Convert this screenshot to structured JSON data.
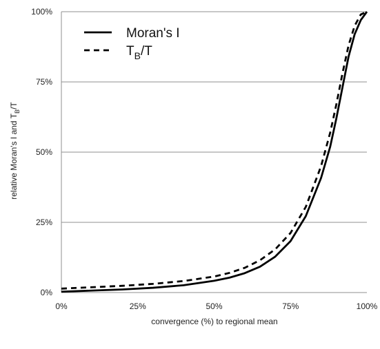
{
  "chart_data": {
    "type": "line",
    "title": "",
    "xlabel": "convergence (%) to regional mean",
    "ylabel_parts": {
      "prefix": "relative Moran's I and T",
      "subscript": "B",
      "suffix": "/T"
    },
    "xlim": [
      0,
      100
    ],
    "ylim": [
      0,
      100
    ],
    "x_ticks": [
      0,
      25,
      50,
      75,
      100
    ],
    "y_ticks": [
      0,
      25,
      50,
      75,
      100
    ],
    "x_tick_labels": [
      "0%",
      "25%",
      "50%",
      "75%",
      "100%"
    ],
    "y_tick_labels": [
      "0%",
      "25%",
      "50%",
      "75%",
      "100%"
    ],
    "grid": "horizontal",
    "legend_position": "top-left",
    "series": [
      {
        "name": "Moran's I",
        "line_style": "solid",
        "color": "#000000",
        "x": [
          0,
          10,
          20,
          30,
          40,
          50,
          55,
          60,
          65,
          70,
          75,
          80,
          85,
          88,
          90,
          92,
          94,
          96,
          98,
          100
        ],
        "y": [
          0.3,
          0.7,
          1.1,
          1.7,
          2.6,
          4.2,
          5.3,
          6.9,
          9.2,
          12.8,
          18.3,
          27.2,
          40.8,
          52,
          62,
          73,
          84,
          92,
          97,
          100
        ]
      },
      {
        "name_parts": {
          "prefix": "T",
          "subscript": "B",
          "suffix": "/T"
        },
        "line_style": "dashed",
        "color": "#000000",
        "x": [
          0,
          10,
          20,
          30,
          40,
          50,
          55,
          60,
          65,
          70,
          75,
          80,
          85,
          88,
          90,
          92,
          94,
          96,
          98,
          100
        ],
        "y": [
          1.4,
          1.9,
          2.4,
          3.1,
          4.1,
          5.7,
          7,
          8.8,
          11.5,
          15.4,
          21.2,
          30.5,
          45,
          57,
          67,
          78,
          88,
          95,
          99,
          100
        ]
      }
    ]
  }
}
